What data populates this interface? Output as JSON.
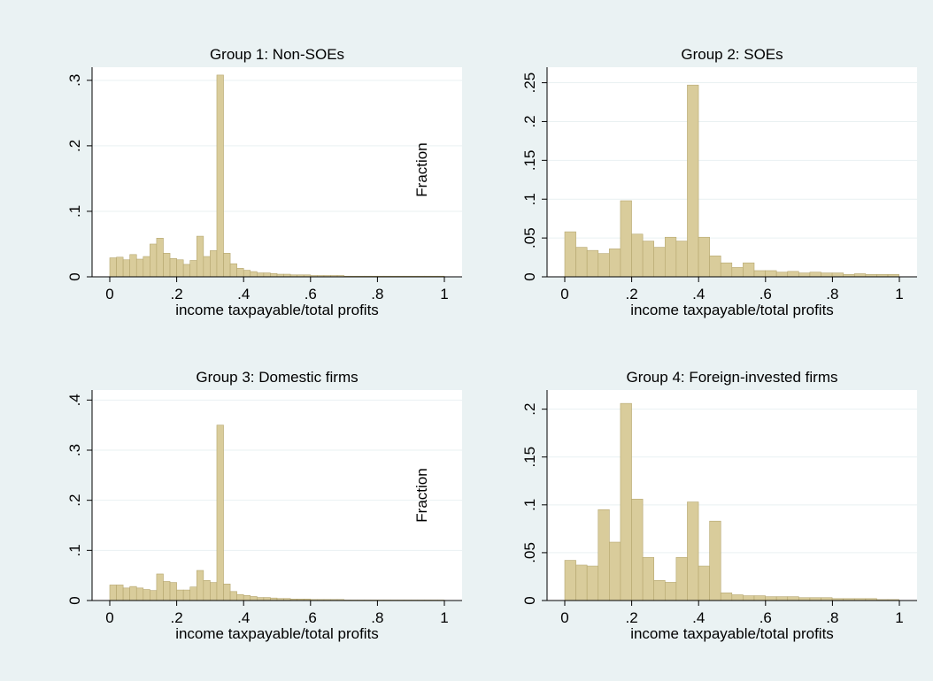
{
  "figure": {
    "background": "#eaf2f3",
    "plot_background": "#ffffff",
    "bar_fill": "#d9cc9b",
    "bar_stroke": "#b5a66e",
    "grid_color": "#e9f1f2"
  },
  "y_axis_label": "Fraction",
  "chart_data": [
    {
      "type": "bar",
      "title": "Group 1: Non-SOEs",
      "xlabel": "income taxpayable/total profits",
      "ylabel": "",
      "xlim": [
        0,
        1
      ],
      "ylim": [
        0,
        0.32
      ],
      "x_ticks": [
        0,
        0.2,
        0.4,
        0.6,
        0.8,
        1
      ],
      "x_tick_labels": [
        "0",
        ".2",
        ".4",
        ".6",
        ".8",
        "1"
      ],
      "y_ticks": [
        0,
        0.1,
        0.2,
        0.3
      ],
      "y_tick_labels": [
        "0",
        ".1",
        ".2",
        ".3"
      ],
      "grid": true,
      "bin_width": 0.02,
      "values": [
        0.029,
        0.03,
        0.026,
        0.034,
        0.027,
        0.031,
        0.05,
        0.059,
        0.036,
        0.028,
        0.026,
        0.019,
        0.025,
        0.062,
        0.031,
        0.04,
        0.308,
        0.036,
        0.02,
        0.013,
        0.01,
        0.008,
        0.006,
        0.006,
        0.005,
        0.004,
        0.004,
        0.003,
        0.003,
        0.003,
        0.002,
        0.002,
        0.002,
        0.002,
        0.002,
        0.001,
        0.001,
        0.001,
        0.001,
        0.001,
        0.001,
        0.001,
        0.001,
        0.001,
        0.001,
        0.001,
        0.001,
        0.001,
        0.001,
        0.001
      ]
    },
    {
      "type": "bar",
      "title": "Group 2: SOEs",
      "xlabel": "income taxpayable/total profits",
      "ylabel": "",
      "xlim": [
        0,
        1
      ],
      "ylim": [
        0,
        0.27
      ],
      "x_ticks": [
        0,
        0.2,
        0.4,
        0.6,
        0.8,
        1
      ],
      "x_tick_labels": [
        "0",
        ".2",
        ".4",
        ".6",
        ".8",
        "1"
      ],
      "y_ticks": [
        0,
        0.05,
        0.1,
        0.15,
        0.2,
        0.25
      ],
      "y_tick_labels": [
        "0",
        ".05",
        ".1",
        ".15",
        ".2",
        ".25"
      ],
      "grid": true,
      "bin_width": 0.0333,
      "values": [
        0.058,
        0.038,
        0.034,
        0.03,
        0.036,
        0.098,
        0.055,
        0.046,
        0.038,
        0.051,
        0.046,
        0.247,
        0.051,
        0.027,
        0.018,
        0.012,
        0.018,
        0.008,
        0.008,
        0.006,
        0.007,
        0.005,
        0.006,
        0.005,
        0.005,
        0.003,
        0.004,
        0.003,
        0.003,
        0.003
      ]
    },
    {
      "type": "bar",
      "title": "Group 3: Domestic firms",
      "xlabel": "income taxpayable/total profits",
      "ylabel": "",
      "xlim": [
        0,
        1
      ],
      "ylim": [
        0,
        0.42
      ],
      "x_ticks": [
        0,
        0.2,
        0.4,
        0.6,
        0.8,
        1
      ],
      "x_tick_labels": [
        "0",
        ".2",
        ".4",
        ".6",
        ".8",
        "1"
      ],
      "y_ticks": [
        0,
        0.1,
        0.2,
        0.3,
        0.4
      ],
      "y_tick_labels": [
        "0",
        ".1",
        ".2",
        ".3",
        ".4"
      ],
      "grid": true,
      "bin_width": 0.02,
      "values": [
        0.031,
        0.031,
        0.025,
        0.028,
        0.025,
        0.022,
        0.02,
        0.053,
        0.038,
        0.036,
        0.021,
        0.021,
        0.027,
        0.06,
        0.04,
        0.036,
        0.35,
        0.033,
        0.018,
        0.012,
        0.01,
        0.008,
        0.006,
        0.006,
        0.005,
        0.004,
        0.004,
        0.003,
        0.003,
        0.003,
        0.002,
        0.002,
        0.002,
        0.002,
        0.002,
        0.001,
        0.001,
        0.001,
        0.001,
        0.001,
        0.001,
        0.001,
        0.001,
        0.001,
        0.001,
        0.001,
        0.001,
        0.001,
        0.001,
        0.001
      ]
    },
    {
      "type": "bar",
      "title": "Group 4: Foreign-invested firms",
      "xlabel": "income taxpayable/total profits",
      "ylabel": "",
      "xlim": [
        0,
        1
      ],
      "ylim": [
        0,
        0.22
      ],
      "x_ticks": [
        0,
        0.2,
        0.4,
        0.6,
        0.8,
        1
      ],
      "x_tick_labels": [
        "0",
        ".2",
        ".4",
        ".6",
        ".8",
        "1"
      ],
      "y_ticks": [
        0,
        0.05,
        0.1,
        0.15,
        0.2
      ],
      "y_tick_labels": [
        "0",
        ".05",
        ".1",
        ".15",
        ".2"
      ],
      "grid": true,
      "bin_width": 0.0333,
      "values": [
        0.042,
        0.037,
        0.036,
        0.095,
        0.061,
        0.206,
        0.106,
        0.045,
        0.021,
        0.019,
        0.045,
        0.103,
        0.036,
        0.083,
        0.008,
        0.006,
        0.005,
        0.005,
        0.004,
        0.004,
        0.004,
        0.003,
        0.003,
        0.003,
        0.002,
        0.002,
        0.002,
        0.002,
        0.001,
        0.001
      ]
    }
  ]
}
